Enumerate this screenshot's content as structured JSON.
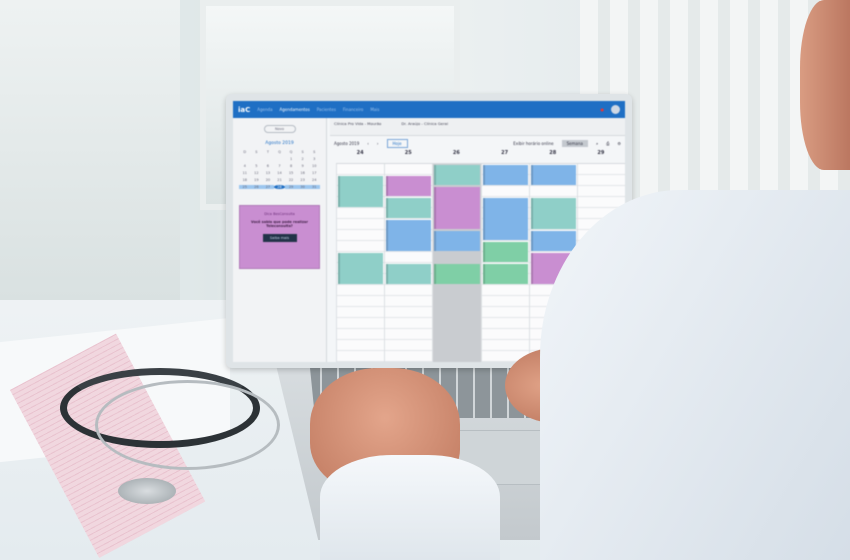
{
  "app": {
    "logo": "iaC",
    "nav": [
      "Agenda",
      "Agendamentos",
      "Pacientes",
      "Financeiro",
      "Mais"
    ],
    "active_nav": 1
  },
  "sidebar": {
    "new_button": "Novo",
    "month": "Agosto 2019",
    "mini_days": [
      "D",
      "S",
      "T",
      "Q",
      "Q",
      "S",
      "S",
      "",
      "",
      "",
      "",
      "1",
      "2",
      "3",
      "4",
      "5",
      "6",
      "7",
      "8",
      "9",
      "10",
      "11",
      "12",
      "13",
      "14",
      "15",
      "16",
      "17",
      "18",
      "19",
      "20",
      "21",
      "22",
      "23",
      "24",
      "25",
      "26",
      "27",
      "28",
      "29",
      "30",
      "31"
    ],
    "selected_week": [
      "25",
      "26",
      "27",
      "28",
      "29",
      "30",
      "31"
    ],
    "today": "28",
    "promo": {
      "title": "Dica BesConsulta",
      "text": "Você sabia que pode realizar Teleconsulta?",
      "button": "Saiba mais"
    }
  },
  "filters": {
    "location": "Clínica Pro Vida - Mourão",
    "professional": "Dr. Araújo - Clínica Geral"
  },
  "toolbar": {
    "period": "Agosto 2019",
    "today": "Hoje",
    "online_toggle": "Exibir horário online",
    "view": "Semana"
  },
  "days": [
    "24",
    "25",
    "26",
    "27",
    "28",
    "29"
  ],
  "colors": {
    "primary": "#1f6fc4",
    "teal": "#8fcfc8",
    "blue": "#7fb4e8",
    "purple": "#c98ed1",
    "green": "#7fcfa6",
    "gray": "#c9ccd0"
  },
  "events": [
    {
      "day": 0,
      "start": 1,
      "len": 3,
      "color": "teal"
    },
    {
      "day": 0,
      "start": 8,
      "len": 3,
      "color": "teal"
    },
    {
      "day": 1,
      "start": 1,
      "len": 2,
      "color": "purple"
    },
    {
      "day": 1,
      "start": 3,
      "len": 2,
      "color": "teal"
    },
    {
      "day": 1,
      "start": 5,
      "len": 3,
      "color": "blue"
    },
    {
      "day": 1,
      "start": 9,
      "len": 2,
      "color": "teal"
    },
    {
      "day": 2,
      "start": 0,
      "len": 2,
      "color": "teal"
    },
    {
      "day": 2,
      "start": 2,
      "len": 4,
      "color": "purple"
    },
    {
      "day": 2,
      "start": 6,
      "len": 2,
      "color": "blue"
    },
    {
      "day": 2,
      "start": 9,
      "len": 2,
      "color": "green"
    },
    {
      "day": 3,
      "start": 0,
      "len": 2,
      "color": "blue"
    },
    {
      "day": 3,
      "start": 3,
      "len": 4,
      "color": "blue"
    },
    {
      "day": 3,
      "start": 7,
      "len": 2,
      "color": "green"
    },
    {
      "day": 3,
      "start": 9,
      "len": 2,
      "color": "green"
    },
    {
      "day": 4,
      "start": 0,
      "len": 2,
      "color": "blue"
    },
    {
      "day": 4,
      "start": 3,
      "len": 3,
      "color": "teal"
    },
    {
      "day": 4,
      "start": 6,
      "len": 2,
      "color": "blue"
    },
    {
      "day": 4,
      "start": 8,
      "len": 3,
      "color": "purple"
    }
  ]
}
